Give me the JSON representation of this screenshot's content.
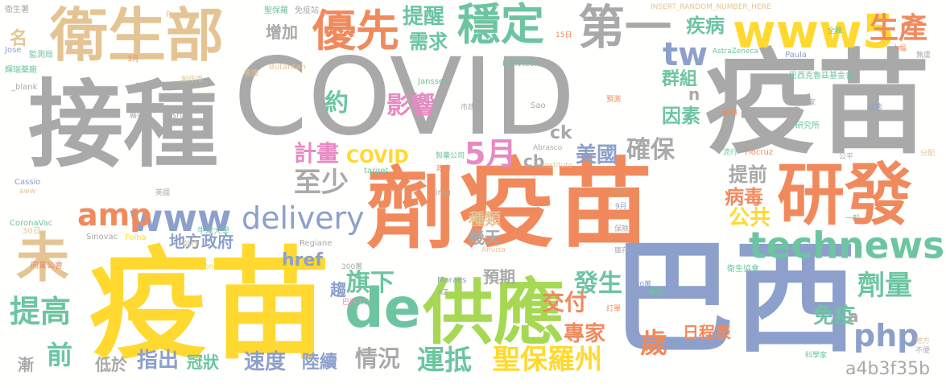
{
  "palette": {
    "gray": "#a9a9a9",
    "orange": "#f08a5d",
    "green": "#6cc5a0",
    "blue": "#8da0cb",
    "pink": "#e78ac3",
    "lime": "#a6d854",
    "yellow": "#ffd92f",
    "tan": "#e5c494"
  },
  "words": {
    "jiezhong": "接種",
    "covid_big": "COVID",
    "yimiao_big": "疫苗",
    "ji": "劑",
    "yimiao_mid": "疫苗",
    "yanfa": "研發",
    "yimiao_left": "疫苗",
    "baxi": "巴西",
    "weishengbu": "衛生部",
    "gongying": "供應",
    "de": "de",
    "technews": "technews",
    "www5": "www5",
    "diyi": "第一",
    "wendin": "穩定",
    "youxian": "優先",
    "wei": "未",
    "shengchan": "生產",
    "www": "www",
    "delivery": "delivery",
    "amp": "amp",
    "php": "php",
    "tw": "tw",
    "tigao": "提高",
    "yundi": "運抵",
    "shengbaoluozhou": "聖保羅州",
    "jiliang": "劑量",
    "zhishao": "至少",
    "jihua": "計畫",
    "yingxiang": "影響",
    "wuyue": "5月",
    "yue": "約",
    "queban": "確保",
    "meiguo": "美國",
    "covid_small": "COVID",
    "gonggong": "公共",
    "jibing": "疾病",
    "xuqiu": "需求",
    "tixing": "提醒",
    "zengjia": "增加",
    "qunzu": "群組",
    "yinsu": "因素",
    "tiqian": "提前",
    "bingdu": "病毒",
    "zhongle": "種類",
    "jitian": "幾天",
    "difangzhengfu": "地方政府",
    "href": "href",
    "qixia": "旗下",
    "fasheng": "發生",
    "jiaofu": "交付",
    "yuqi": "預期",
    "qu": "趨",
    "zhuanjia": "專家",
    "richengbiao": "日程表",
    "mianyi": "免疫",
    "sui": "歲",
    "qian": "前",
    "zhichu": "指出",
    "guanzhuang": "冠狀",
    "sudu": "速度",
    "luxu": "陸續",
    "qingkuang": "情況",
    "jian": "漸",
    "diyu": "低於",
    "ming": "名",
    "ck": "ck",
    "cb": "cb",
    "n": "n",
    "a": "a",
    "hash": "a4b3f35b",
    "sm_weishengshu": "衛生署",
    "sm_paulo": "Paulo",
    "sm_shengbaoyi": "聖保羅",
    "sm_mianfei": "免疫站",
    "sm_insert": "INSERT_RANDOM_NUMBER_HERE",
    "sm_quanzhi": "全職",
    "sm_jose": "Jose",
    "sm_jiancheju": "監測局",
    "sm_huirui": "輝瑞藥廠",
    "sm_blank": "_blank",
    "sm_biontech": "BioNTech",
    "sm_astrazeneca": "AstraZeneca",
    "sm_paula": "Paula",
    "sm_daxi": "大幅",
    "sm_wuyu": "無虞",
    "sm_butantan": "Butantan",
    "sm_janssen": "Janssen",
    "sm_baxikeluji": "巴西克魯茲基金會",
    "sm_yanjiusuo": "研究所",
    "sm_sao": "Sao",
    "sm_abrasco": "Abrasco",
    "sm_instituto": "Instituto",
    "sm_fiocruz": "Fiocruz",
    "sm_target": "target",
    "sm_img": "img",
    "sm_cassio": "Cassio",
    "sm_aww": "aww",
    "sm_coronavac": "CoronaVac",
    "sm_30ri": "30日",
    "sm_sinovac": "Sinovac",
    "sm_folha": "Folha",
    "sm_regiane": "Regiane",
    "sm_niujin": "牛津大學",
    "sm_anvisa": "Anvisa",
    "sm_zoneid": "zoneid",
    "sm_pfizer": "Pfizer",
    "sm_moraes": "Moraes",
    "sm_az": "AZ",
    "sm_300wan": "300萬",
    "sm_100wan": "100萬",
    "sm_weishengxiehui": "衛生協會",
    "sm_tongxuehui": "同業公會",
    "sm_zhiyuzhe": "執行",
    "sm_src": "src",
    "sm_baxirenkou": "巴西人口",
    "sm_kexuejia": "科學家",
    "sm_gongping": "公平",
    "sm_fenpei": "分配",
    "sm_zhiyaogongsi": "製藥公司",
    "sm_yiliao": "醫療",
    "sm_guojia": "國家",
    "sm_shizheng": "市政",
    "sm_zhuangtai": "狀態",
    "sm_15ri": "15日",
    "sm_3yue": "3月",
    "sm_9yue": "9月",
    "sm_beijing": "北京",
    "sm_yingguo": "英國",
    "sm_zhongguo": "中國",
    "sm_yiban": "一般",
    "sm_xinwen": "新聞",
    "sm_chuanzuo": "創作用",
    "sm_guanli": "管理",
    "sm_baodao": "報導",
    "sm_zhengfu": "政府",
    "sm_yuce": "預測",
    "sm_dingdan": "訂單",
    "sm_bubian": "不便",
    "sm_difang": "地方",
    "sm_kucun": "庫存",
    "sm_liuxing": "流行",
    "sm_baoxian": "保險"
  }
}
